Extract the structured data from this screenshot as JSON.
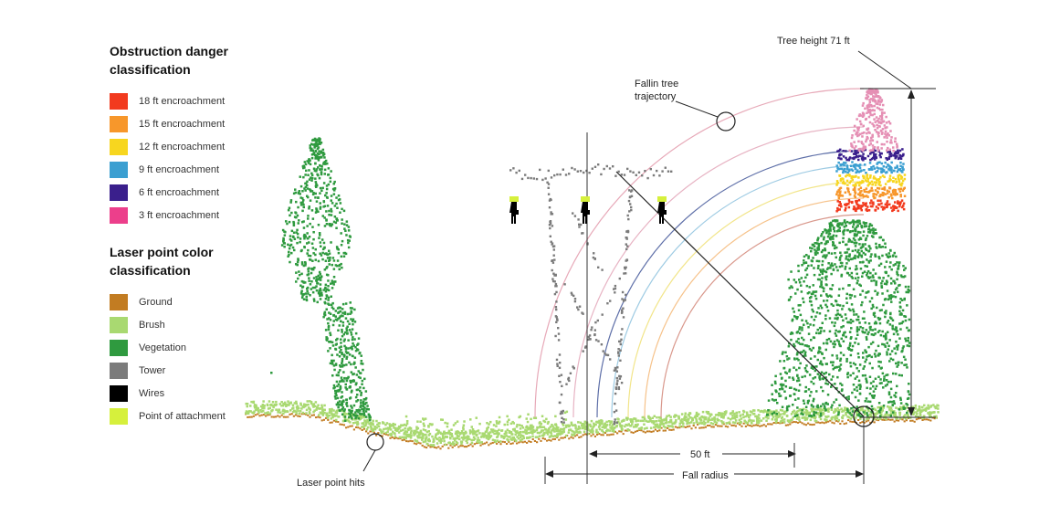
{
  "legend": {
    "danger_title": "Obstruction danger classification",
    "danger_items": [
      {
        "label": "18 ft encroachment",
        "color": "#f23a1e"
      },
      {
        "label": "15 ft encroachment",
        "color": "#f7972b"
      },
      {
        "label": "12 ft encroachment",
        "color": "#f7d61f"
      },
      {
        "label": "9 ft encroachment",
        "color": "#3b9fd1"
      },
      {
        "label": "6 ft encroachment",
        "color": "#3a1f8c"
      },
      {
        "label": "3 ft encroachment",
        "color": "#ec3f8b"
      }
    ],
    "laser_title": "Laser point color classification",
    "laser_items": [
      {
        "label": "Ground",
        "color": "#c27c22"
      },
      {
        "label": "Brush",
        "color": "#a9d971"
      },
      {
        "label": "Vegetation",
        "color": "#2f9a3f"
      },
      {
        "label": "Tower",
        "color": "#7b7b7b"
      },
      {
        "label": "Wires",
        "color": "#000000"
      },
      {
        "label": "Point of attachment",
        "color": "#d6f03c"
      }
    ]
  },
  "annotations": {
    "tree_height": "Tree height 71 ft",
    "fallin_line1": "Fallin tree",
    "fallin_line2": "trajectory",
    "laser_hits": "Laser point hits",
    "fifty_ft": "50 ft",
    "fall_radius": "Fall radius"
  },
  "colors": {
    "ground": "#c27c22",
    "brush": "#a9d971",
    "vegetation": "#2f9a3f",
    "tower": "#7b7b7b",
    "wires": "#000000",
    "attachment": "#d6f03c",
    "canopy_pink": "#e58fb4"
  }
}
